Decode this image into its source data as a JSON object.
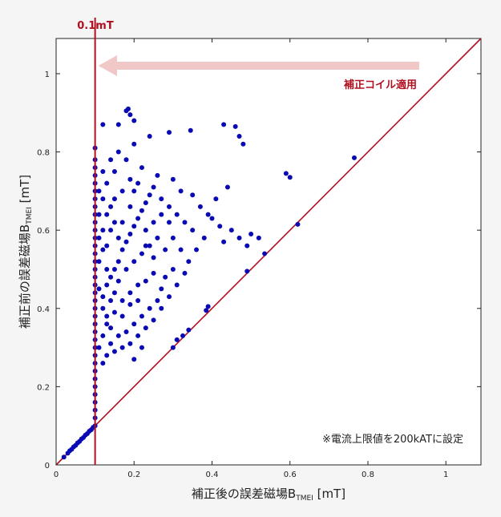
{
  "chart_data": {
    "type": "scatter",
    "title": "",
    "xlabel": "補正後の誤差磁場B",
    "xlabel_sub": "TMEI",
    "xlabel_unit": " [mT]",
    "ylabel": "補正前の誤差磁場B",
    "ylabel_sub": "TMEI",
    "ylabel_unit": " [mT]",
    "xlim": [
      0,
      1.09
    ],
    "ylim": [
      0,
      1.09
    ],
    "x_ticks": [
      "0",
      "0.2",
      "0.4",
      "0.6",
      "0.8",
      "1"
    ],
    "y_ticks": [
      "0",
      "0.2",
      "0.4",
      "0.6",
      "0.8",
      "1"
    ],
    "grid": false,
    "threshold_x": 0.1,
    "threshold_label": "0.1mT",
    "arrow_label": "補正コイル適用",
    "note": "※電流上限値を200kATに設定",
    "reference_line": "y = x",
    "point_color": "#0a0ab4",
    "line_color": "#b01020",
    "arrow_color": "#f0c8c8",
    "series": [
      {
        "points": [
          [
            0.02,
            0.02
          ],
          [
            0.03,
            0.03
          ],
          [
            0.035,
            0.036
          ],
          [
            0.04,
            0.04
          ],
          [
            0.045,
            0.046
          ],
          [
            0.05,
            0.05
          ],
          [
            0.055,
            0.056
          ],
          [
            0.06,
            0.06
          ],
          [
            0.065,
            0.066
          ],
          [
            0.07,
            0.07
          ],
          [
            0.075,
            0.076
          ],
          [
            0.08,
            0.08
          ],
          [
            0.085,
            0.086
          ],
          [
            0.09,
            0.09
          ],
          [
            0.095,
            0.096
          ],
          [
            0.1,
            0.1
          ],
          [
            0.1,
            0.12
          ],
          [
            0.1,
            0.14
          ],
          [
            0.1,
            0.16
          ],
          [
            0.1,
            0.18
          ],
          [
            0.1,
            0.2
          ],
          [
            0.1,
            0.22
          ],
          [
            0.1,
            0.24
          ],
          [
            0.1,
            0.26
          ],
          [
            0.1,
            0.28
          ],
          [
            0.1,
            0.3
          ],
          [
            0.1,
            0.32
          ],
          [
            0.1,
            0.34
          ],
          [
            0.1,
            0.36
          ],
          [
            0.1,
            0.38
          ],
          [
            0.1,
            0.4
          ],
          [
            0.1,
            0.42
          ],
          [
            0.1,
            0.44
          ],
          [
            0.1,
            0.46
          ],
          [
            0.1,
            0.48
          ],
          [
            0.1,
            0.5
          ],
          [
            0.1,
            0.52
          ],
          [
            0.1,
            0.54
          ],
          [
            0.1,
            0.56
          ],
          [
            0.1,
            0.58
          ],
          [
            0.1,
            0.6
          ],
          [
            0.1,
            0.62
          ],
          [
            0.1,
            0.64
          ],
          [
            0.1,
            0.66
          ],
          [
            0.1,
            0.68
          ],
          [
            0.1,
            0.7
          ],
          [
            0.1,
            0.72
          ],
          [
            0.1,
            0.74
          ],
          [
            0.1,
            0.76
          ],
          [
            0.1,
            0.78
          ],
          [
            0.1,
            0.81
          ],
          [
            0.12,
            0.87
          ],
          [
            0.18,
            0.905
          ],
          [
            0.185,
            0.91
          ],
          [
            0.19,
            0.895
          ],
          [
            0.2,
            0.88
          ],
          [
            0.16,
            0.87
          ],
          [
            0.43,
            0.87
          ],
          [
            0.46,
            0.865
          ],
          [
            0.47,
            0.84
          ],
          [
            0.48,
            0.82
          ],
          [
            0.345,
            0.855
          ],
          [
            0.29,
            0.85
          ],
          [
            0.24,
            0.84
          ],
          [
            0.59,
            0.745
          ],
          [
            0.6,
            0.735
          ],
          [
            0.765,
            0.785
          ],
          [
            0.62,
            0.615
          ],
          [
            0.535,
            0.54
          ],
          [
            0.49,
            0.495
          ],
          [
            0.385,
            0.395
          ],
          [
            0.39,
            0.405
          ],
          [
            0.31,
            0.32
          ],
          [
            0.3,
            0.3
          ],
          [
            0.325,
            0.33
          ],
          [
            0.34,
            0.345
          ],
          [
            0.12,
            0.26
          ],
          [
            0.2,
            0.27
          ],
          [
            0.22,
            0.3
          ],
          [
            0.11,
            0.3
          ],
          [
            0.14,
            0.31
          ],
          [
            0.13,
            0.72
          ],
          [
            0.15,
            0.75
          ],
          [
            0.18,
            0.78
          ],
          [
            0.22,
            0.76
          ],
          [
            0.26,
            0.74
          ],
          [
            0.3,
            0.73
          ],
          [
            0.32,
            0.7
          ],
          [
            0.35,
            0.69
          ],
          [
            0.37,
            0.66
          ],
          [
            0.4,
            0.63
          ],
          [
            0.42,
            0.61
          ],
          [
            0.45,
            0.6
          ],
          [
            0.5,
            0.59
          ],
          [
            0.52,
            0.58
          ],
          [
            0.38,
            0.58
          ],
          [
            0.36,
            0.55
          ],
          [
            0.34,
            0.52
          ],
          [
            0.3,
            0.5
          ],
          [
            0.28,
            0.48
          ],
          [
            0.27,
            0.45
          ],
          [
            0.26,
            0.42
          ],
          [
            0.24,
            0.4
          ],
          [
            0.22,
            0.38
          ],
          [
            0.2,
            0.36
          ],
          [
            0.18,
            0.34
          ],
          [
            0.16,
            0.33
          ],
          [
            0.14,
            0.35
          ],
          [
            0.13,
            0.38
          ],
          [
            0.12,
            0.4
          ],
          [
            0.12,
            0.43
          ],
          [
            0.13,
            0.46
          ],
          [
            0.14,
            0.48
          ],
          [
            0.15,
            0.5
          ],
          [
            0.16,
            0.52
          ],
          [
            0.17,
            0.55
          ],
          [
            0.18,
            0.57
          ],
          [
            0.19,
            0.59
          ],
          [
            0.2,
            0.61
          ],
          [
            0.21,
            0.63
          ],
          [
            0.22,
            0.65
          ],
          [
            0.23,
            0.67
          ],
          [
            0.24,
            0.69
          ],
          [
            0.25,
            0.71
          ],
          [
            0.27,
            0.68
          ],
          [
            0.29,
            0.66
          ],
          [
            0.31,
            0.64
          ],
          [
            0.33,
            0.62
          ],
          [
            0.35,
            0.6
          ],
          [
            0.26,
            0.58
          ],
          [
            0.24,
            0.56
          ],
          [
            0.22,
            0.54
          ],
          [
            0.2,
            0.52
          ],
          [
            0.18,
            0.5
          ],
          [
            0.16,
            0.47
          ],
          [
            0.15,
            0.44
          ],
          [
            0.14,
            0.42
          ],
          [
            0.13,
            0.5
          ],
          [
            0.12,
            0.55
          ],
          [
            0.12,
            0.6
          ],
          [
            0.13,
            0.64
          ],
          [
            0.12,
            0.68
          ],
          [
            0.14,
            0.66
          ],
          [
            0.15,
            0.62
          ],
          [
            0.16,
            0.58
          ],
          [
            0.17,
            0.62
          ],
          [
            0.19,
            0.66
          ],
          [
            0.2,
            0.7
          ],
          [
            0.21,
            0.72
          ],
          [
            0.23,
            0.6
          ],
          [
            0.25,
            0.53
          ],
          [
            0.28,
            0.55
          ],
          [
            0.3,
            0.58
          ],
          [
            0.32,
            0.55
          ],
          [
            0.29,
            0.62
          ],
          [
            0.27,
            0.64
          ],
          [
            0.25,
            0.62
          ],
          [
            0.23,
            0.56
          ],
          [
            0.21,
            0.46
          ],
          [
            0.19,
            0.44
          ],
          [
            0.17,
            0.42
          ],
          [
            0.15,
            0.39
          ],
          [
            0.13,
            0.36
          ],
          [
            0.17,
            0.38
          ],
          [
            0.19,
            0.41
          ],
          [
            0.21,
            0.42
          ],
          [
            0.23,
            0.47
          ],
          [
            0.25,
            0.49
          ],
          [
            0.11,
            0.45
          ],
          [
            0.11,
            0.52
          ],
          [
            0.11,
            0.58
          ],
          [
            0.11,
            0.64
          ],
          [
            0.11,
            0.7
          ],
          [
            0.12,
            0.75
          ],
          [
            0.14,
            0.78
          ],
          [
            0.16,
            0.8
          ],
          [
            0.2,
            0.82
          ],
          [
            0.13,
            0.56
          ],
          [
            0.14,
            0.6
          ],
          [
            0.15,
            0.68
          ],
          [
            0.17,
            0.7
          ],
          [
            0.19,
            0.73
          ],
          [
            0.44,
            0.71
          ],
          [
            0.41,
            0.68
          ],
          [
            0.39,
            0.64
          ],
          [
            0.43,
            0.57
          ],
          [
            0.47,
            0.58
          ],
          [
            0.49,
            0.56
          ],
          [
            0.33,
            0.49
          ],
          [
            0.31,
            0.46
          ],
          [
            0.29,
            0.43
          ],
          [
            0.27,
            0.4
          ],
          [
            0.25,
            0.37
          ],
          [
            0.23,
            0.35
          ],
          [
            0.21,
            0.33
          ],
          [
            0.19,
            0.31
          ],
          [
            0.17,
            0.3
          ],
          [
            0.15,
            0.29
          ],
          [
            0.13,
            0.28
          ],
          [
            0.12,
            0.33
          ]
        ]
      }
    ]
  }
}
